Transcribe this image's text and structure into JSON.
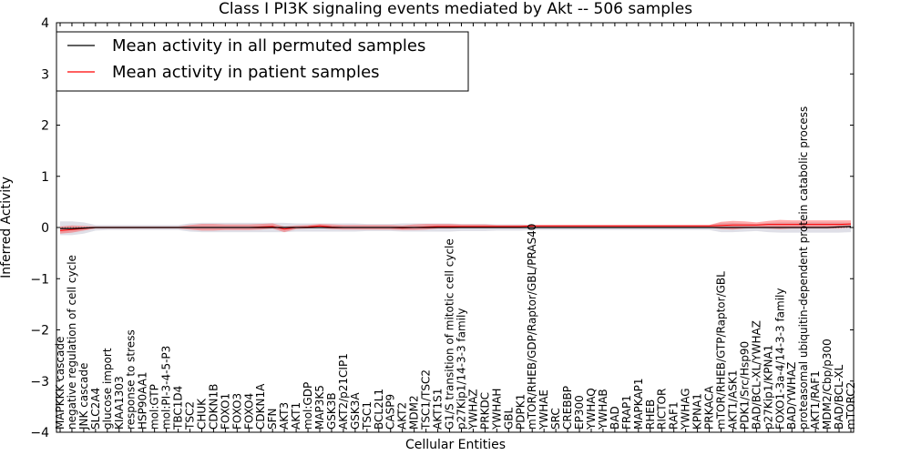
{
  "chart_data": {
    "type": "line",
    "title": "Class I PI3K signaling events mediated by Akt -- 506 samples",
    "xlabel": "Cellular Entities",
    "ylabel": "Inferred Activity",
    "ylim": [
      -4,
      4
    ],
    "yticks": [
      -4,
      -3,
      -2,
      -1,
      0,
      1,
      2,
      3,
      4
    ],
    "ytick_labels": [
      "−4",
      "−3",
      "−2",
      "−1",
      "0",
      "1",
      "2",
      "3",
      "4"
    ],
    "legend": {
      "placement": "top-left",
      "entries": [
        {
          "label": "Mean activity in all permuted samples",
          "color": "#000000"
        },
        {
          "label": "Mean activity in patient samples",
          "color": "#ff0000"
        }
      ]
    },
    "categories": [
      "MAPKKK cascade",
      "negative regulation of cell cycle",
      "JNK cascade",
      "SLC2A4",
      "glucose import",
      "KIAA1303",
      "response to stress",
      "HSP90AA1",
      "mol:GTP",
      "mol:PI-3-4-5-P3",
      "TBC1D4",
      "TSC2",
      "CHUK",
      "CDKN1B",
      "FOXO1",
      "FOXO3",
      "FOXO4",
      "CDKN1A",
      "SFN",
      "AKT3",
      "AKT1",
      "mol:GDP",
      "MAP3K5",
      "GSK3B",
      "AKT2/p21CIP1",
      "GSK3A",
      "TSC1",
      "BCL2L1",
      "CASP9",
      "AKT2",
      "MDM2",
      "TSC1/TSC2",
      "AKT1S1",
      "G1/S transition of mitotic cell cycle",
      "p27Kip1/14-3-3 family",
      "YWHAZ",
      "PRKDC",
      "YWHAH",
      "GBL",
      "PDPK1",
      "mTOR/RHEB/GDP/Raptor/GBL/PRAS40",
      "YWHAE",
      "SRC",
      "CREBBP",
      "EP300",
      "YWHAQ",
      "YWHAB",
      "BAD",
      "FRAP1",
      "MAPKAP1",
      "RHEB",
      "RICTOR",
      "RAF1",
      "YWHAG",
      "KPNA1",
      "PRKACA",
      "mTOR/RHEB/GTP/Raptor/GBL",
      "AKT1/ASK1",
      "PDK1/Src/Hsp90",
      "BAD/BCL-XL/YWHAZ",
      "p27Kip1/KPNA1",
      "FOXO1-3a-4/14-3-3 family",
      "BAD/YWHAZ",
      "proteasomal ubiquitin-dependent protein catabolic process",
      "AKT1/RAF1",
      "MDM2/Cbp/p300",
      "BAD/BCL-XL",
      "mTORC2"
    ],
    "series": [
      {
        "name": "Mean activity in all permuted samples",
        "color": "#000000",
        "values": [
          -0.02,
          -0.02,
          -0.01,
          0.0,
          0.0,
          0.0,
          0.0,
          0.0,
          0.0,
          0.0,
          0.0,
          0.0,
          0.0,
          0.0,
          0.0,
          0.0,
          0.0,
          0.0,
          0.0,
          0.0,
          0.0,
          0.0,
          0.0,
          0.0,
          0.0,
          0.0,
          0.0,
          0.0,
          0.0,
          0.0,
          0.0,
          0.0,
          0.0,
          0.0,
          0.0,
          0.0,
          0.0,
          0.0,
          0.0,
          0.0,
          0.0,
          0.0,
          0.0,
          0.0,
          0.0,
          0.0,
          0.0,
          0.0,
          0.0,
          0.0,
          0.0,
          0.0,
          0.0,
          0.0,
          0.0,
          0.0,
          0.0,
          0.0,
          0.0,
          0.0,
          0.0,
          0.0,
          0.0,
          0.0,
          0.0,
          0.0,
          0.01,
          0.02
        ],
        "band_low": [
          -0.15,
          -0.15,
          -0.12,
          -0.06,
          -0.05,
          -0.05,
          -0.05,
          -0.05,
          -0.05,
          -0.05,
          -0.05,
          -0.08,
          -0.09,
          -0.09,
          -0.09,
          -0.09,
          -0.09,
          -0.09,
          -0.09,
          -0.09,
          -0.08,
          -0.08,
          -0.08,
          -0.08,
          -0.08,
          -0.08,
          -0.07,
          -0.07,
          -0.07,
          -0.08,
          -0.08,
          -0.08,
          -0.08,
          -0.08,
          -0.07,
          -0.07,
          -0.07,
          -0.06,
          -0.06,
          -0.06,
          -0.05,
          -0.05,
          -0.05,
          -0.05,
          -0.05,
          -0.05,
          -0.05,
          -0.05,
          -0.05,
          -0.05,
          -0.05,
          -0.05,
          -0.05,
          -0.05,
          -0.05,
          -0.05,
          -0.09,
          -0.09,
          -0.08,
          -0.07,
          -0.09,
          -0.1,
          -0.1,
          -0.1,
          -0.1,
          -0.1,
          -0.1,
          -0.09
        ],
        "band_high": [
          0.12,
          0.12,
          0.1,
          0.05,
          0.05,
          0.05,
          0.05,
          0.05,
          0.05,
          0.05,
          0.05,
          0.08,
          0.09,
          0.09,
          0.09,
          0.09,
          0.09,
          0.09,
          0.09,
          0.09,
          0.08,
          0.08,
          0.08,
          0.08,
          0.08,
          0.08,
          0.07,
          0.07,
          0.07,
          0.08,
          0.08,
          0.08,
          0.08,
          0.08,
          0.07,
          0.07,
          0.07,
          0.06,
          0.06,
          0.06,
          0.05,
          0.05,
          0.05,
          0.05,
          0.05,
          0.05,
          0.05,
          0.05,
          0.05,
          0.05,
          0.05,
          0.05,
          0.05,
          0.05,
          0.05,
          0.05,
          0.09,
          0.09,
          0.08,
          0.07,
          0.09,
          0.1,
          0.1,
          0.1,
          0.1,
          0.1,
          0.1,
          0.09
        ]
      },
      {
        "name": "Mean activity in patient samples",
        "color": "#ff0000",
        "values": [
          -0.06,
          -0.04,
          -0.02,
          0.0,
          0.0,
          0.0,
          0.0,
          0.0,
          0.0,
          0.0,
          0.0,
          0.0,
          0.0,
          0.0,
          0.0,
          0.0,
          0.0,
          0.01,
          0.02,
          -0.03,
          0.0,
          0.01,
          0.03,
          0.01,
          0.0,
          0.0,
          0.0,
          0.0,
          0.0,
          -0.01,
          0.0,
          0.01,
          0.02,
          0.02,
          0.02,
          0.02,
          0.02,
          0.02,
          0.02,
          0.02,
          0.03,
          0.03,
          0.03,
          0.03,
          0.03,
          0.03,
          0.03,
          0.03,
          0.03,
          0.03,
          0.03,
          0.03,
          0.03,
          0.03,
          0.03,
          0.03,
          0.04,
          0.05,
          0.05,
          0.05,
          0.06,
          0.06,
          0.06,
          0.06,
          0.06,
          0.06,
          0.06,
          0.07
        ],
        "band_low": [
          -0.12,
          -0.1,
          -0.06,
          -0.02,
          -0.02,
          -0.02,
          -0.02,
          -0.02,
          -0.02,
          -0.02,
          -0.02,
          -0.04,
          -0.06,
          -0.06,
          -0.05,
          -0.05,
          -0.05,
          -0.04,
          -0.02,
          -0.09,
          -0.03,
          -0.02,
          -0.01,
          -0.03,
          -0.04,
          -0.04,
          -0.04,
          -0.04,
          -0.04,
          -0.05,
          -0.05,
          -0.04,
          -0.02,
          -0.02,
          -0.01,
          -0.01,
          -0.01,
          -0.01,
          -0.01,
          -0.01,
          0.0,
          0.0,
          0.0,
          0.0,
          0.0,
          0.0,
          0.0,
          0.0,
          0.0,
          0.0,
          0.0,
          0.0,
          0.0,
          0.0,
          0.0,
          0.0,
          -0.03,
          -0.04,
          -0.02,
          -0.01,
          -0.02,
          -0.03,
          -0.02,
          -0.02,
          -0.02,
          -0.02,
          -0.02,
          0.0
        ],
        "band_high": [
          0.02,
          0.04,
          0.03,
          0.02,
          0.02,
          0.02,
          0.02,
          0.02,
          0.02,
          0.02,
          0.02,
          0.05,
          0.07,
          0.07,
          0.06,
          0.06,
          0.06,
          0.07,
          0.08,
          0.02,
          0.04,
          0.05,
          0.07,
          0.06,
          0.05,
          0.05,
          0.05,
          0.05,
          0.05,
          0.04,
          0.06,
          0.07,
          0.07,
          0.07,
          0.06,
          0.06,
          0.06,
          0.05,
          0.05,
          0.05,
          0.05,
          0.05,
          0.05,
          0.05,
          0.05,
          0.05,
          0.05,
          0.05,
          0.05,
          0.05,
          0.05,
          0.05,
          0.05,
          0.05,
          0.05,
          0.05,
          0.11,
          0.13,
          0.12,
          0.1,
          0.13,
          0.15,
          0.14,
          0.14,
          0.14,
          0.14,
          0.14,
          0.14
        ]
      }
    ]
  }
}
